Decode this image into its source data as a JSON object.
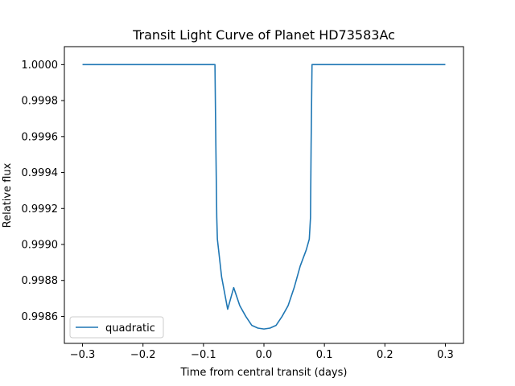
{
  "chart_data": {
    "type": "line",
    "title": "Transit Light Curve of Planet HD73583Ac",
    "xlabel": "Time from central transit (days)",
    "ylabel": "Relative flux",
    "xlim": [
      -0.33,
      0.33
    ],
    "ylim": [
      0.99845,
      1.0001
    ],
    "xticks": [
      -0.3,
      -0.2,
      -0.1,
      0.0,
      0.1,
      0.2,
      0.3
    ],
    "xtick_labels": [
      "−0.3",
      "−0.2",
      "−0.1",
      "0.0",
      "0.1",
      "0.2",
      "0.3"
    ],
    "yticks": [
      0.9986,
      0.9988,
      0.999,
      0.9992,
      0.9994,
      0.9996,
      0.9998,
      1.0
    ],
    "ytick_labels": [
      "0.9986",
      "0.9988",
      "0.9990",
      "0.9992",
      "0.9994",
      "0.9996",
      "0.9998",
      "1.0000"
    ],
    "grid": false,
    "legend_location": "lower-left",
    "series": [
      {
        "name": "quadratic",
        "color": "#1f77b4",
        "x": [
          -0.3,
          -0.2,
          -0.1,
          -0.081,
          -0.0795,
          -0.078,
          -0.077,
          -0.075,
          -0.07,
          -0.06,
          -0.05,
          -0.04,
          -0.03,
          -0.02,
          -0.01,
          0.0,
          0.01,
          0.02,
          0.03,
          0.04,
          0.05,
          0.06,
          0.07,
          0.075,
          0.077,
          0.078,
          0.0795,
          0.081,
          0.1,
          0.2,
          0.3
        ],
        "y": [
          1.0,
          1.0,
          1.0,
          1.0,
          0.99955,
          0.99915,
          0.99903,
          0.99897,
          0.99882,
          0.99864,
          0.99876,
          0.99866,
          0.9986,
          0.99855,
          0.998535,
          0.99853,
          0.998535,
          0.99855,
          0.9986,
          0.99866,
          0.99876,
          0.99888,
          0.99897,
          0.99903,
          0.99915,
          0.99955,
          1.0,
          1.0,
          1.0,
          1.0,
          1.0
        ]
      }
    ]
  }
}
